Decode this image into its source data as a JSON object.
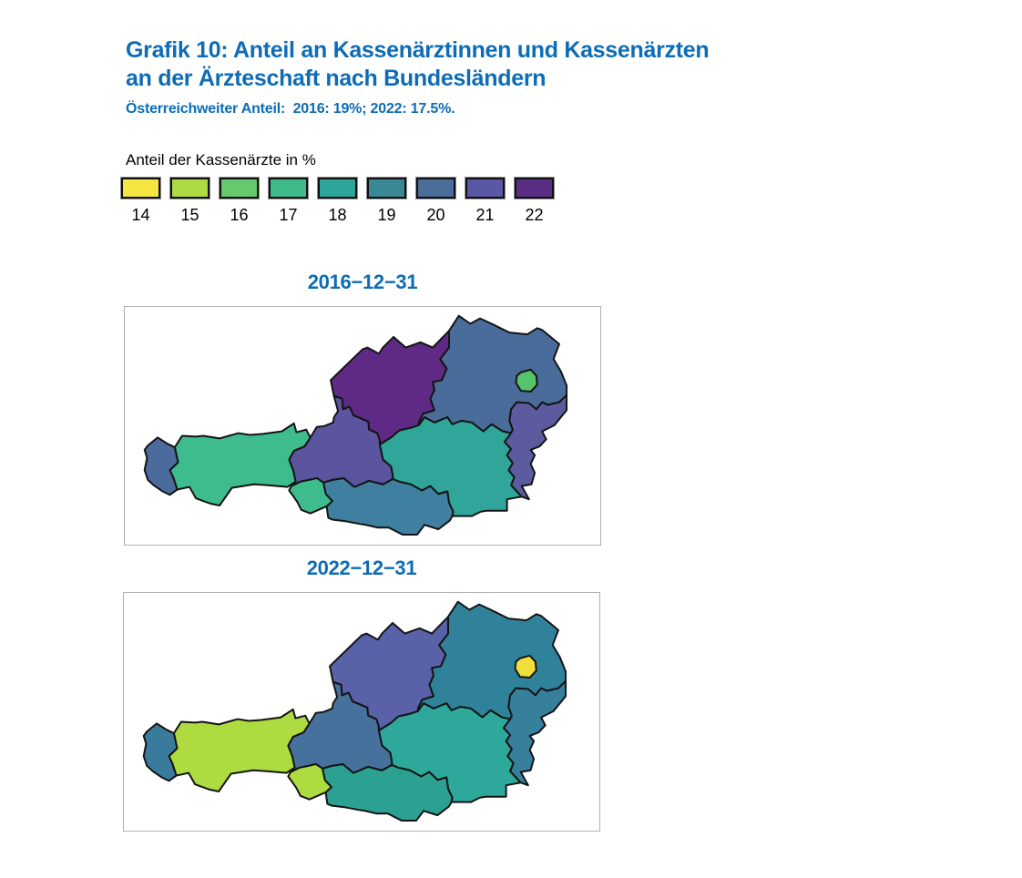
{
  "page": {
    "background": "#ffffff",
    "accent_blue": "#0e6cb5"
  },
  "header": {
    "title_line1": "Grafik 10: Anteil an Kassenärztinnen und Kassenärzten",
    "title_line2": "an der Ärzteschaft nach Bundesländern",
    "subtitle": "Österreichweiter Anteil:  2016: 19%; 2022: 17.5%."
  },
  "chart_data": {
    "type": "choropleth",
    "title": "Grafik 10: Anteil an Kassenärztinnen und Kassenärzten an der Ärzteschaft nach Bundesländern",
    "subtitle": "Österreichweiter Anteil: 2016: 19%; 2022: 17.5%.",
    "austria_total": {
      "2016": "19%",
      "2022": "17.5%"
    },
    "unit": "Anteil der Kassenärzte in %",
    "scale": {
      "values": [
        "14",
        "15",
        "16",
        "17",
        "18",
        "19",
        "20",
        "21",
        "22"
      ],
      "colors": [
        "#F5E642",
        "#AFDB42",
        "#66C96E",
        "#3FBA8B",
        "#2EA59A",
        "#3A8796",
        "#4A6E99",
        "#5A58A5",
        "#5A2D84"
      ]
    },
    "legend_position": "top-left",
    "maps": [
      {
        "title": "2016−12−31",
        "regions": [
          {
            "name": "Vorarlberg",
            "value": 20,
            "color": "#4A6B9B"
          },
          {
            "name": "Tirol",
            "value": 17,
            "color": "#3EBC8D"
          },
          {
            "name": "Salzburg",
            "value": 21,
            "color": "#5B55A0"
          },
          {
            "name": "Oberösterreich",
            "value": 22,
            "color": "#5E2A85"
          },
          {
            "name": "Niederösterreich",
            "value": 20,
            "color": "#4A6C9B"
          },
          {
            "name": "Wien",
            "value": 16,
            "color": "#56C46C"
          },
          {
            "name": "Burgenland",
            "value": 21,
            "color": "#5D5B9F"
          },
          {
            "name": "Steiermark",
            "value": 18,
            "color": "#2FA699"
          },
          {
            "name": "Kärnten",
            "value": 19,
            "color": "#3F7FA0"
          }
        ]
      },
      {
        "title": "2022−12−31",
        "regions": [
          {
            "name": "Vorarlberg",
            "value": 19,
            "color": "#3A7A9C"
          },
          {
            "name": "Tirol",
            "value": 15,
            "color": "#AEDB3F"
          },
          {
            "name": "Salzburg",
            "value": 20,
            "color": "#47719D"
          },
          {
            "name": "Oberösterreich",
            "value": 21,
            "color": "#5961A8"
          },
          {
            "name": "Niederösterreich",
            "value": 19,
            "color": "#30829B"
          },
          {
            "name": "Wien",
            "value": 14,
            "color": "#F0DE3C"
          },
          {
            "name": "Burgenland",
            "value": 19,
            "color": "#37809C"
          },
          {
            "name": "Steiermark",
            "value": 18,
            "color": "#2EA89B"
          },
          {
            "name": "Kärnten",
            "value": 18,
            "color": "#2CA192"
          }
        ]
      }
    ]
  }
}
